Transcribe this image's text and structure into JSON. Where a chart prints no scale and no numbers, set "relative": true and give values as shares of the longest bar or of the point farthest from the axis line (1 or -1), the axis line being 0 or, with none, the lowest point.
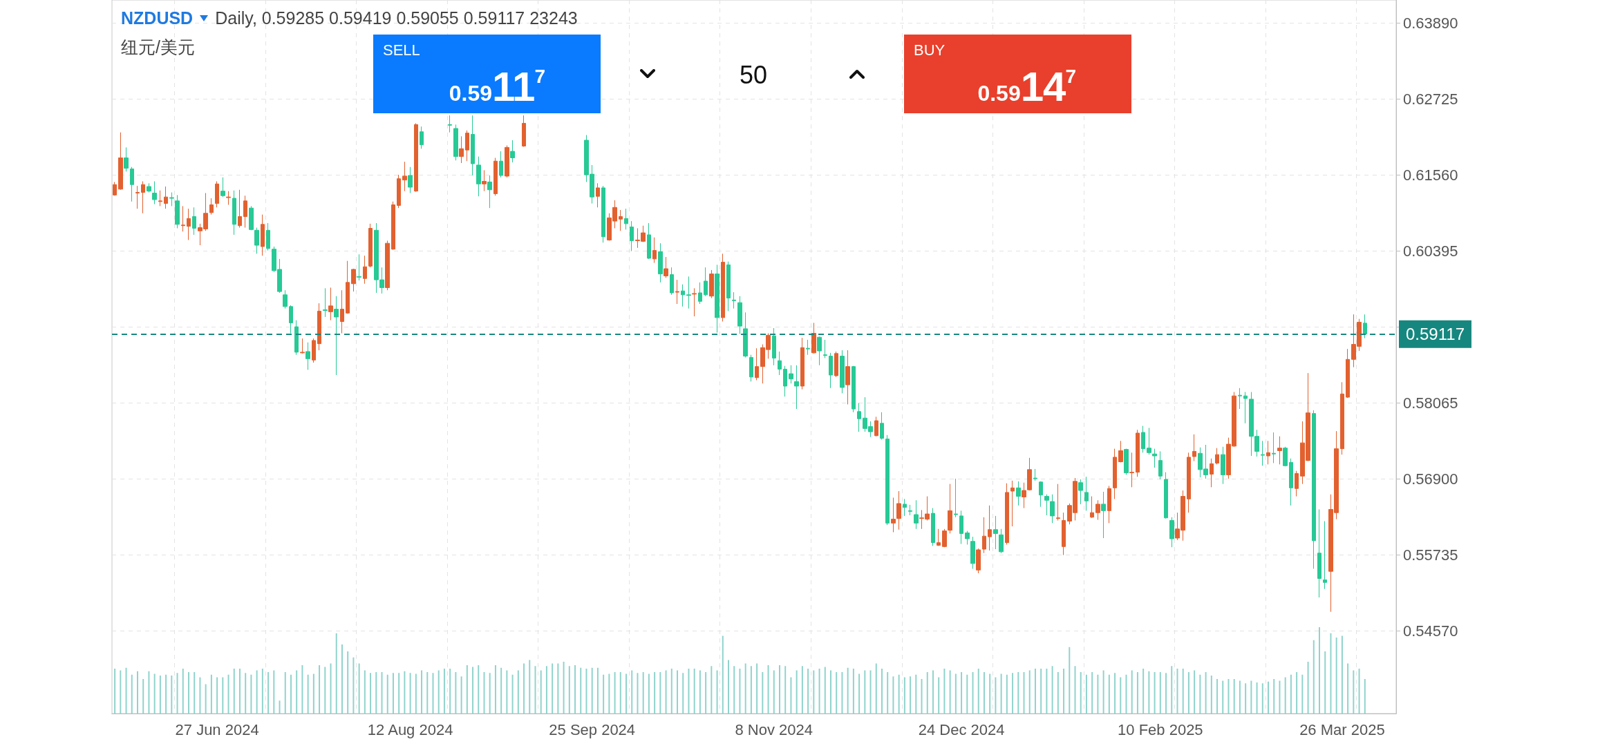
{
  "chart_data": [
    {
      "type": "candlestick",
      "title": "NZDUSD",
      "subtitle": "Daily, 0.59285 0.59419 0.59055 0.59117 23243",
      "annotations": [
        "纽元/美元",
        "SELL",
        "0.5911$^{7}$",
        "50",
        "BUY",
        "0.5914$^{7}$"
      ],
      "colors": [
        "#e2612f",
        "#e2612f",
        "#27c995",
        "#27c995",
        "#e2612f",
        "#e2612f",
        "#27c995",
        "#27c995",
        "#e2612f",
        "#e2612f",
        "#27c995",
        "#27c995",
        "#e2612f",
        "#e2612f",
        "#27c995",
        "#e2612f",
        "#e2612f",
        "#e2612f",
        "#e2612f",
        "#27c995",
        "#e2612f",
        "#27c995",
        "#e2612f",
        "#e2612f",
        "#27c995",
        "#27c995",
        "#e2612f",
        "#27c995",
        "#27c995",
        "#27c995",
        "#27c995",
        "#27c995",
        "#27c995",
        "#e2612f",
        "#27c995",
        "#e2612f",
        "#e2612f",
        "#27c995",
        "#e2612f",
        "#27c995",
        "#e2612f",
        "#e2612f",
        "#e2612f",
        "#27c995",
        "#e2612f",
        "#e2612f",
        "#27c995",
        "#27c995",
        "#e2612f",
        "#e2612f",
        "#e2612f",
        "#e2612f",
        "#27c995",
        "#e2612f",
        "#27c995",
        "#e2612f",
        "#27c995",
        "#e2612f",
        "#27c995",
        "#27c995",
        "#27c995",
        "#e2612f",
        "#e2612f",
        "#27c995",
        "#27c995",
        "#e2612f",
        "#27c995",
        "#e2612f",
        "#27c995",
        "#e2612f",
        "#27c995",
        "#e2612f",
        "#e2612f",
        "#27c995",
        "#e2612f",
        null,
        null,
        null,
        null,
        null,
        null,
        null,
        "#27c995",
        "#27c995",
        "#27c995",
        "#e2612f",
        "#27c995",
        "#e2612f",
        "#e2612f",
        "#e2612f",
        "#27c995",
        "#27c995",
        "#e2612f",
        "#e2612f",
        "#27c995",
        "#e2612f",
        "#27c995",
        "#e2612f",
        "#27c995",
        "#e2612f",
        "#27c995",
        "#27c995",
        "#e2612f",
        "#27c995",
        "#27c995",
        "#e2612f",
        "#27c995",
        "#e2612f",
        "#27c995",
        "#27c995",
        "#27c995",
        "#27c995",
        "#27c995",
        "#e2612f",
        "#e2612f",
        "#e2612f",
        "#27c995",
        "#27c995",
        "#27c995",
        "#27c995",
        "#27c995",
        "#e2612f",
        "#27c995",
        "#e2612f",
        "#27c995",
        "#27c995",
        "#27c995",
        "#e2612f",
        "#27c995",
        "#e2612f",
        "#27c995",
        "#27c995",
        "#27c995",
        "#27c995",
        "#e2612f",
        "#27c995",
        "#27c995",
        "#e2612f",
        "#e2612f",
        "#27c995",
        "#27c995",
        "#27c995",
        "#e2612f",
        "#e2612f",
        "#27c995",
        "#e2612f",
        "#e2612f",
        "#e2612f",
        "#27c995",
        "#27c995",
        "#27c995",
        "#27c995",
        "#e2612f",
        "#e2612f",
        "#e2612f",
        "#27c995",
        "#27c995",
        "#e2612f",
        "#e2612f",
        "#27c995",
        "#e2612f",
        "#e2612f",
        "#27c995",
        "#27c995",
        "#27c995",
        "#27c995",
        "#e2612f",
        "#e2612f",
        "#e2612f",
        "#e2612f",
        "#27c995",
        "#27c995",
        "#e2612f",
        "#e2612f",
        "#27c995",
        "#e2612f",
        "#e2612f",
        "#e2612f",
        "#27c995",
        "#e2612f",
        "#e2612f",
        "#27c995",
        "#27c995",
        "#27c995",
        "#27c995",
        "#27c995",
        "#27c995",
        "#e2612f",
        "#e2612f",
        "#e2612f",
        "#e2612f",
        "#27c995",
        "#27c995",
        "#e2612f",
        "#e2612f",
        "#27c995",
        "#e2612f",
        "#e2612f",
        "#27c995",
        "#27c995",
        "#27c995",
        "#27c995",
        "#27c995",
        "#e2612f",
        "#27c995",
        "#e2612f",
        "#27c995",
        "#27c995",
        "#e2612f",
        "#e2612f",
        "#e2612f",
        "#27c995",
        "#27c995",
        "#27c995",
        "#e2612f",
        "#e2612f",
        "#e2612f",
        "#e2612f",
        "#e2612f",
        "#e2612f",
        "#27c995",
        null,
        null,
        null,
        null,
        null
      ],
      "categories": [
        null,
        null,
        null,
        null,
        null,
        null,
        null,
        null,
        null,
        null,
        null,
        null,
        null,
        null,
        null,
        null,
        null,
        null,
        "27 Jun 2024",
        null,
        null,
        null,
        null,
        null,
        null,
        null,
        null,
        null,
        null,
        null,
        null,
        null,
        null,
        null,
        null,
        null,
        null,
        null,
        null,
        null,
        null,
        null,
        null,
        null,
        null,
        null,
        null,
        null,
        null,
        null,
        null,
        null,
        "12 Aug 2024",
        null,
        null,
        null,
        null,
        null,
        null,
        null,
        null,
        null,
        null,
        null,
        null,
        null,
        null,
        null,
        null,
        null,
        null,
        null,
        null,
        null,
        null,
        null,
        null,
        null,
        null,
        null,
        null,
        null,
        null,
        null,
        "25 Sep 2024",
        null,
        null,
        null,
        null,
        null,
        null,
        null,
        null,
        null,
        null,
        null,
        null,
        null,
        null,
        null,
        null,
        null,
        null,
        null,
        null,
        null,
        null,
        null,
        null,
        null,
        null,
        null,
        null,
        null,
        null,
        null,
        "8 Nov 2024",
        null,
        null,
        null,
        null,
        null,
        null,
        null,
        null,
        null,
        null,
        null,
        null,
        null,
        null,
        null,
        null,
        null,
        null,
        null,
        null,
        null,
        null,
        null,
        null,
        null,
        null,
        null,
        null,
        null,
        null,
        null,
        null,
        "24 Dec 2024",
        null,
        null,
        null,
        null,
        null,
        null,
        null,
        null,
        null,
        null,
        null,
        null,
        null,
        null,
        null,
        null,
        null,
        null,
        null,
        null,
        null,
        null,
        null,
        null,
        null,
        null,
        null,
        null,
        null,
        null,
        null,
        null,
        null,
        null,
        "10 Feb 2025",
        null,
        null,
        null,
        null,
        null,
        null,
        null,
        null,
        null,
        null,
        null,
        null,
        null,
        null,
        null,
        null,
        null,
        null,
        null,
        null,
        null,
        null,
        null,
        null,
        null,
        null,
        null,
        null,
        null,
        null,
        null,
        "26 Mar 2025",
        null,
        null,
        null,
        null,
        null,
        null,
        null,
        null,
        null
      ],
      "ohlc": [
        [
          0.6125,
          0.6145,
          0.6124,
          0.6141
        ],
        [
          0.6134,
          0.6221,
          0.6133,
          0.6182
        ],
        [
          0.6182,
          0.6198,
          0.6161,
          0.6166
        ],
        [
          0.6165,
          0.6168,
          0.6115,
          0.6141
        ],
        [
          0.6128,
          0.6139,
          0.6104,
          0.6129
        ],
        [
          0.6129,
          0.6146,
          0.6097,
          0.6141
        ],
        [
          0.6138,
          0.6143,
          0.6129,
          0.6131
        ],
        [
          0.6128,
          0.6146,
          0.6111,
          0.6118
        ],
        [
          0.6115,
          0.6132,
          0.6108,
          0.6116
        ],
        [
          0.6112,
          0.6138,
          0.6104,
          0.6122
        ],
        [
          0.6121,
          0.6129,
          0.6108,
          0.612
        ],
        [
          0.6116,
          0.6125,
          0.6074,
          0.608
        ],
        [
          0.6078,
          0.6108,
          0.6069,
          0.6079
        ],
        [
          0.6077,
          0.6104,
          0.6056,
          0.6089
        ],
        [
          0.6092,
          0.6106,
          0.6064,
          0.6074
        ],
        [
          0.607,
          0.6081,
          0.6048,
          0.6075
        ],
        [
          0.6073,
          0.6128,
          0.607,
          0.6097
        ],
        [
          0.6098,
          0.612,
          0.6095,
          0.611
        ],
        [
          0.6112,
          0.6146,
          0.6106,
          0.6142
        ],
        [
          0.6131,
          0.6152,
          0.6122,
          0.6124
        ],
        [
          0.6121,
          0.6131,
          0.611,
          0.6122
        ],
        [
          0.612,
          0.6132,
          0.6064,
          0.608
        ],
        [
          0.6078,
          0.6133,
          0.6075,
          0.6092
        ],
        [
          0.6092,
          0.6124,
          0.6075,
          0.6116
        ],
        [
          0.6105,
          0.6108,
          0.6071,
          0.6072
        ],
        [
          0.6071,
          0.6075,
          0.6035,
          0.6048
        ],
        [
          0.6046,
          0.6095,
          0.6032,
          0.608
        ],
        [
          0.6071,
          0.6082,
          0.604,
          0.6043
        ],
        [
          0.6042,
          0.6046,
          0.6007,
          0.6009
        ],
        [
          0.6011,
          0.6027,
          0.5975,
          0.5977
        ],
        [
          0.5972,
          0.5979,
          0.5951,
          0.5954
        ],
        [
          0.5954,
          0.5956,
          0.5913,
          0.5929
        ],
        [
          0.5923,
          0.5933,
          0.588,
          0.5884
        ],
        [
          0.5883,
          0.5905,
          0.5882,
          0.5884
        ],
        [
          0.5885,
          0.5899,
          0.5857,
          0.5874
        ],
        [
          0.5872,
          0.5905,
          0.5868,
          0.5902
        ],
        [
          0.5897,
          0.5959,
          0.5887,
          0.5947
        ],
        [
          0.5949,
          0.5982,
          0.5938,
          0.5948
        ],
        [
          0.5946,
          0.5983,
          0.5933,
          0.5955
        ],
        [
          0.595,
          0.597,
          0.5849,
          0.5938
        ],
        [
          0.5931,
          0.5979,
          0.5913,
          0.595
        ],
        [
          0.5944,
          0.6024,
          0.5943,
          0.5991
        ],
        [
          0.5989,
          0.6012,
          0.5977,
          0.6011
        ],
        [
          0.6,
          0.6034,
          0.5994,
          0.5999
        ],
        [
          0.5997,
          0.6032,
          0.5989,
          0.6015
        ],
        [
          0.6016,
          0.6081,
          0.6014,
          0.6074
        ],
        [
          0.6071,
          0.6082,
          0.5975,
          0.5995
        ],
        [
          0.5995,
          0.6014,
          0.5974,
          0.5983
        ],
        [
          0.5983,
          0.6055,
          0.5979,
          0.6051
        ],
        [
          0.6042,
          0.6115,
          0.6041,
          0.611
        ],
        [
          0.6109,
          0.6156,
          0.6105,
          0.615
        ],
        [
          0.6148,
          0.6176,
          0.6131,
          0.6154
        ],
        [
          0.6155,
          0.6168,
          0.6128,
          0.6137
        ],
        [
          0.6131,
          0.6235,
          0.613,
          0.6233
        ],
        [
          0.6222,
          0.623,
          0.6196,
          0.6202
        ],
        null,
        null,
        null,
        null,
        [
          0.6233,
          0.6247,
          0.6221,
          0.6232
        ],
        [
          0.6227,
          0.6233,
          0.6178,
          0.6184
        ],
        [
          0.6184,
          0.6215,
          0.6174,
          0.6196
        ],
        [
          0.6194,
          0.6224,
          0.6177,
          0.622
        ],
        [
          0.6218,
          0.6247,
          0.6155,
          0.6173
        ],
        [
          0.6171,
          0.6184,
          0.6123,
          0.6142
        ],
        [
          0.6142,
          0.6163,
          0.6131,
          0.6146
        ],
        [
          0.6145,
          0.6155,
          0.6105,
          0.6133
        ],
        [
          0.6127,
          0.6182,
          0.6124,
          0.6177
        ],
        [
          0.6177,
          0.6192,
          0.6152,
          0.6155
        ],
        [
          0.6154,
          0.6201,
          0.6152,
          0.6198
        ],
        [
          0.6192,
          0.6209,
          0.6175,
          0.6182
        ],
        null,
        [
          0.62,
          0.6247,
          0.6199,
          0.6235
        ],
        null,
        null,
        null,
        null,
        null,
        null,
        null,
        null,
        null,
        null,
        [
          0.6209,
          0.6217,
          0.6145,
          0.6156
        ],
        [
          0.6157,
          0.6171,
          0.6112,
          0.6122
        ],
        [
          0.6123,
          0.6143,
          0.6106,
          0.6136
        ],
        [
          0.6136,
          0.6139,
          0.6052,
          0.6061
        ],
        [
          0.6056,
          0.6097,
          0.6055,
          0.609
        ],
        [
          0.6085,
          0.6117,
          0.6074,
          0.6106
        ],
        [
          0.6088,
          0.6102,
          0.607,
          0.6092
        ],
        [
          0.6089,
          0.6104,
          0.6072,
          0.6081
        ],
        [
          0.6076,
          0.6085,
          0.6039,
          0.6055
        ],
        [
          0.6055,
          0.6074,
          0.6044,
          0.6056
        ],
        [
          0.6054,
          0.6078,
          0.6053,
          0.6067
        ],
        [
          0.6064,
          0.6082,
          0.6027,
          0.6028
        ],
        [
          0.6027,
          0.606,
          0.6021,
          0.604
        ],
        [
          0.6038,
          0.6051,
          0.5991,
          0.6004
        ],
        [
          0.6001,
          0.603,
          0.5998,
          0.6012
        ],
        [
          0.6003,
          0.6014,
          0.5972,
          0.5975
        ],
        [
          0.5976,
          0.5995,
          0.5958,
          0.5977
        ],
        [
          0.5978,
          0.5988,
          0.5954,
          0.5972
        ],
        [
          0.5972,
          0.6,
          0.5951,
          0.5971
        ],
        [
          0.5973,
          0.5982,
          0.5939,
          0.5974
        ],
        [
          0.5975,
          0.5991,
          0.5958,
          0.5962
        ],
        [
          0.5993,
          0.6014,
          0.597,
          0.5972
        ],
        [
          0.597,
          0.601,
          0.5967,
          0.6004
        ],
        [
          0.6004,
          0.6018,
          0.5914,
          0.5937
        ],
        [
          0.5937,
          0.6035,
          0.5931,
          0.6022
        ],
        [
          0.6018,
          0.6023,
          0.5947,
          0.5967
        ],
        [
          0.5964,
          0.5976,
          0.5951,
          0.5963
        ],
        [
          0.596,
          0.597,
          0.5912,
          0.5924
        ],
        [
          0.592,
          0.5945,
          0.5876,
          0.5878
        ],
        [
          0.5876,
          0.588,
          0.5839,
          0.5846
        ],
        [
          0.5845,
          0.589,
          0.5841,
          0.5862
        ],
        [
          0.5862,
          0.5896,
          0.5836,
          0.5891
        ],
        [
          0.5888,
          0.5913,
          0.5874,
          0.591
        ],
        [
          0.5909,
          0.5921,
          0.5864,
          0.5875
        ],
        [
          0.5871,
          0.5885,
          0.5849,
          0.5858
        ],
        [
          0.5858,
          0.5863,
          0.5816,
          0.5832
        ],
        [
          0.5851,
          0.5864,
          0.5836,
          0.5843
        ],
        [
          0.5839,
          0.5864,
          0.5797,
          0.5832
        ],
        [
          0.5832,
          0.5906,
          0.5827,
          0.5891
        ],
        [
          0.589,
          0.5903,
          0.588,
          0.5889
        ],
        [
          0.5883,
          0.5929,
          0.5882,
          0.5913
        ],
        [
          0.5907,
          0.5908,
          0.5864,
          0.5886
        ],
        [
          0.588,
          0.5903,
          0.5875,
          0.5879
        ],
        [
          0.5878,
          0.5883,
          0.5829,
          0.5849
        ],
        [
          0.5848,
          0.5885,
          0.5846,
          0.5882
        ],
        [
          0.5878,
          0.5887,
          0.5821,
          0.583
        ],
        [
          0.5834,
          0.5887,
          0.5804,
          0.5862
        ],
        [
          0.5862,
          0.5863,
          0.5792,
          0.5797
        ],
        [
          0.5793,
          0.5806,
          0.5762,
          0.5782
        ],
        [
          0.5783,
          0.5815,
          0.5762,
          0.5767
        ],
        [
          0.577,
          0.5778,
          0.5754,
          0.5762
        ],
        [
          0.5756,
          0.5785,
          0.5755,
          0.5779
        ],
        [
          0.5775,
          0.5792,
          0.575,
          0.5752
        ],
        [
          0.5751,
          0.5757,
          0.5619,
          0.5622
        ],
        [
          0.5622,
          0.5661,
          0.5608,
          0.5628
        ],
        [
          0.5629,
          0.5671,
          0.5612,
          0.5652
        ],
        [
          0.5651,
          0.5659,
          0.5633,
          0.5646
        ],
        [
          0.5641,
          0.565,
          0.5634,
          0.564
        ],
        [
          0.5635,
          0.5657,
          0.5613,
          0.5622
        ],
        [
          0.5629,
          0.5642,
          0.5613,
          0.563
        ],
        [
          0.5628,
          0.5663,
          0.5626,
          0.5636
        ],
        [
          0.5637,
          0.5645,
          0.5587,
          0.5592
        ],
        [
          0.5588,
          0.5613,
          0.5587,
          0.5592
        ],
        [
          0.5586,
          0.5613,
          0.5585,
          0.561
        ],
        [
          0.5611,
          0.5682,
          0.5606,
          0.5641
        ],
        [
          0.5636,
          0.569,
          0.5631,
          0.5635
        ],
        [
          0.5633,
          0.5641,
          0.559,
          0.5606
        ],
        [
          0.5607,
          0.561,
          0.5589,
          0.5598
        ],
        [
          0.5594,
          0.5601,
          0.5552,
          0.556
        ],
        [
          0.555,
          0.5583,
          0.5545,
          0.5581
        ],
        [
          0.5582,
          0.5631,
          0.5576,
          0.5602
        ],
        [
          0.5601,
          0.5649,
          0.558,
          0.5612
        ],
        [
          0.5612,
          0.5633,
          0.5582,
          0.5606
        ],
        [
          0.5604,
          0.5613,
          0.5576,
          0.5578
        ],
        [
          0.5592,
          0.5683,
          0.5589,
          0.5669
        ],
        [
          0.5671,
          0.5687,
          0.5617,
          0.5676
        ],
        [
          0.5676,
          0.5686,
          0.5649,
          0.5663
        ],
        [
          0.5662,
          0.5684,
          0.5645,
          0.5672
        ],
        [
          0.5673,
          0.5722,
          0.5672,
          0.5704
        ],
        [
          0.5691,
          0.5705,
          0.5687,
          0.569
        ],
        [
          0.5685,
          0.5686,
          0.5647,
          0.5665
        ],
        [
          0.5663,
          0.5666,
          0.5634,
          0.5657
        ],
        [
          0.5655,
          0.5666,
          0.5622,
          0.5633
        ],
        [
          0.5629,
          0.5682,
          0.5626,
          0.563
        ],
        [
          0.5586,
          0.5638,
          0.5573,
          0.5626
        ],
        [
          0.5625,
          0.5652,
          0.562,
          0.5649
        ],
        [
          0.5638,
          0.5691,
          0.5626,
          0.5686
        ],
        [
          0.5684,
          0.5689,
          0.5651,
          0.5672
        ],
        [
          0.5669,
          0.5693,
          0.5641,
          0.5656
        ],
        [
          0.5631,
          0.5663,
          0.563,
          0.5638
        ],
        [
          0.5638,
          0.5657,
          0.5627,
          0.5651
        ],
        [
          0.5651,
          0.567,
          0.5599,
          0.5641
        ],
        [
          0.5641,
          0.5679,
          0.5622,
          0.5675
        ],
        [
          0.5676,
          0.5736,
          0.5659,
          0.5723
        ],
        [
          0.5716,
          0.5748,
          0.5715,
          0.5733
        ],
        [
          0.5735,
          0.5736,
          0.5696,
          0.5699
        ],
        [
          0.5699,
          0.573,
          0.5677,
          0.57
        ],
        [
          0.57,
          0.5765,
          0.5693,
          0.576
        ],
        [
          0.5761,
          0.5771,
          0.573,
          0.5736
        ],
        [
          0.5737,
          0.5768,
          0.5727,
          0.573
        ],
        [
          0.5728,
          0.5736,
          0.5707,
          0.5725
        ],
        [
          0.5718,
          0.5732,
          0.5689,
          0.5694
        ],
        [
          0.5689,
          0.57,
          0.5629,
          0.563
        ],
        [
          0.5626,
          0.5631,
          0.5585,
          0.5598
        ],
        [
          0.5599,
          0.5638,
          0.5596,
          0.5613
        ],
        [
          0.5611,
          0.5672,
          0.5595,
          0.5663
        ],
        [
          0.5659,
          0.573,
          0.5638,
          0.5723
        ],
        [
          0.5724,
          0.5758,
          0.5717,
          0.5732
        ],
        [
          0.5729,
          0.5738,
          0.5692,
          0.5704
        ],
        [
          0.5705,
          0.5742,
          0.569,
          0.5696
        ],
        [
          0.5697,
          0.5721,
          0.5677,
          0.5713
        ],
        [
          0.5714,
          0.5737,
          0.5712,
          0.5727
        ],
        [
          0.5727,
          0.5739,
          0.5682,
          0.5696
        ],
        [
          0.5696,
          0.5753,
          0.569,
          0.5743
        ],
        [
          0.574,
          0.5823,
          0.5739,
          0.5817
        ],
        [
          0.5818,
          0.5829,
          0.5797,
          0.5817
        ],
        [
          0.5817,
          0.5823,
          0.5775,
          0.5813
        ],
        [
          0.5812,
          0.5823,
          0.5725,
          0.5755
        ],
        [
          0.5755,
          0.5765,
          0.5724,
          0.5732
        ],
        [
          0.5727,
          0.5748,
          0.571,
          0.5726
        ],
        [
          0.5725,
          0.5748,
          0.5712,
          0.573
        ],
        [
          0.5729,
          0.5761,
          0.5714,
          0.5728
        ],
        [
          0.5733,
          0.5755,
          0.5712,
          0.5737
        ],
        [
          0.5737,
          0.5739,
          0.5709,
          0.571
        ],
        [
          0.5715,
          0.5721,
          0.5649,
          0.5676
        ],
        [
          0.5675,
          0.5702,
          0.5663,
          0.5698
        ],
        [
          0.5694,
          0.5778,
          0.5682,
          0.5745
        ],
        [
          0.5718,
          0.5852,
          0.5717,
          0.5791
        ],
        [
          0.579,
          0.5795,
          0.5552,
          0.5595
        ],
        [
          0.5576,
          0.5643,
          0.5508,
          0.5537
        ],
        [
          0.5535,
          0.5625,
          0.5521,
          0.5531
        ],
        [
          0.5548,
          0.5666,
          0.5486,
          0.5643
        ],
        [
          0.5638,
          0.5763,
          0.5628,
          0.5736
        ],
        [
          0.5736,
          0.5838,
          0.5727,
          0.582
        ],
        [
          0.5815,
          0.5889,
          0.5814,
          0.5873
        ],
        [
          0.5873,
          0.5942,
          0.5861,
          0.5896
        ],
        [
          0.5893,
          0.5935,
          0.5886,
          0.593
        ],
        [
          0.59285,
          0.59419,
          0.59055,
          0.59117
        ],
        null,
        null,
        null,
        null,
        null
      ],
      "ylim": [
        0.533,
        0.6424
      ],
      "yticks": [
        {
          "value": 0.5457,
          "label": "0.54570"
        },
        {
          "value": 0.55735,
          "label": "0.55735"
        },
        {
          "value": 0.569,
          "label": "0.56900"
        },
        {
          "value": 0.58065,
          "label": "0.58065"
        },
        {
          "value": 0.5923,
          "label": null
        },
        {
          "value": 0.60395,
          "label": "0.60395"
        },
        {
          "value": 0.6156,
          "label": "0.61560"
        },
        {
          "value": 0.62725,
          "label": "0.62725"
        },
        {
          "value": 0.6389,
          "label": "0.63890"
        }
      ],
      "ref_lines": [
        {
          "axis": "y",
          "value": 0.59117,
          "label": "0.59117",
          "color": "#16877f",
          "line_style": "dashed"
        }
      ],
      "grid": true
    },
    {
      "type": "bar",
      "relative": true,
      "color": "#8fd3cc",
      "categories": [
        null,
        null,
        null,
        null,
        null,
        null,
        null,
        null,
        null,
        null,
        null,
        null,
        null,
        null,
        null,
        null,
        null,
        null,
        null,
        null,
        null,
        null,
        null,
        null,
        null,
        null,
        null,
        null,
        null,
        null,
        null,
        null,
        null,
        null,
        null,
        null,
        null,
        null,
        null,
        null,
        null,
        null,
        null,
        null,
        null,
        null,
        null,
        null,
        null,
        null,
        null,
        null,
        null,
        null,
        null,
        null,
        null,
        null,
        null,
        null,
        null,
        null,
        null,
        null,
        null,
        null,
        null,
        null,
        null,
        null,
        null,
        null,
        null,
        null,
        null,
        null,
        null,
        null,
        null,
        null,
        null,
        null,
        null,
        null,
        null,
        null,
        null,
        null,
        null,
        null,
        null,
        null,
        null,
        null,
        null,
        null,
        null,
        null,
        null,
        null,
        null,
        null,
        null,
        null,
        null,
        null,
        null,
        null,
        null,
        null,
        null,
        null,
        null,
        null,
        null,
        null,
        null,
        null,
        null,
        null,
        null,
        null,
        null,
        null,
        null,
        null,
        null,
        null,
        null,
        null,
        null,
        null,
        null,
        null,
        null,
        null,
        null,
        null,
        null,
        null,
        null,
        null,
        null,
        null,
        null,
        null,
        null,
        null,
        null,
        null,
        null,
        null,
        null,
        null,
        null,
        null,
        null,
        null,
        null,
        null,
        null,
        null,
        null,
        null,
        null,
        null,
        null,
        null,
        null,
        null,
        null,
        null,
        null,
        null,
        null,
        null,
        null,
        null,
        null,
        null,
        null,
        null,
        null,
        null,
        null,
        null,
        null,
        null,
        null,
        null,
        null,
        null,
        null,
        null,
        null,
        null,
        null,
        null,
        null,
        null,
        null,
        null,
        null,
        null,
        null,
        null,
        null,
        null,
        null,
        null,
        null,
        null,
        null,
        null,
        null,
        null,
        null,
        null,
        null,
        null,
        null,
        null,
        null,
        null,
        null,
        null
      ],
      "values": [
        0.52,
        0.5,
        0.53,
        0.45,
        0.49,
        0.4,
        0.49,
        0.46,
        0.44,
        0.45,
        0.44,
        0.47,
        0.52,
        0.48,
        0.48,
        0.42,
        0.34,
        0.45,
        0.42,
        0.42,
        0.45,
        0.52,
        0.52,
        0.47,
        0.45,
        0.5,
        0.52,
        0.48,
        0.5,
        0.15,
        0.48,
        0.45,
        0.5,
        0.56,
        0.45,
        0.46,
        0.56,
        0.54,
        0.58,
        0.93,
        0.8,
        0.72,
        0.65,
        0.58,
        0.5,
        0.47,
        0.48,
        0.48,
        0.45,
        0.47,
        0.47,
        0.49,
        0.47,
        0.46,
        0.5,
        0.48,
        0.47,
        0.5,
        0.52,
        0.52,
        0.48,
        0.43,
        0.56,
        0.54,
        0.56,
        0.48,
        0.47,
        0.56,
        0.53,
        0.5,
        0.45,
        0.5,
        0.58,
        0.62,
        0.55,
        0.5,
        0.55,
        0.58,
        0.58,
        0.6,
        0.55,
        0.56,
        0.53,
        0.52,
        0.53,
        0.53,
        0.45,
        0.46,
        0.48,
        0.48,
        0.46,
        0.5,
        0.47,
        0.48,
        0.46,
        0.48,
        0.48,
        0.5,
        0.52,
        0.5,
        0.47,
        0.52,
        0.52,
        0.5,
        0.48,
        0.55,
        0.5,
        0.9,
        0.62,
        0.55,
        0.52,
        0.58,
        0.55,
        0.58,
        0.48,
        0.56,
        0.5,
        0.56,
        0.55,
        0.42,
        0.5,
        0.55,
        0.52,
        0.5,
        0.52,
        0.54,
        0.5,
        0.48,
        0.48,
        0.53,
        0.52,
        0.46,
        0.5,
        0.5,
        0.58,
        0.52,
        0.48,
        0.43,
        0.45,
        0.42,
        0.43,
        0.45,
        0.4,
        0.48,
        0.5,
        0.42,
        0.52,
        0.5,
        0.46,
        0.48,
        0.45,
        0.48,
        0.52,
        0.48,
        0.46,
        0.42,
        0.46,
        0.45,
        0.47,
        0.48,
        0.48,
        0.5,
        0.52,
        0.52,
        0.52,
        0.55,
        0.48,
        0.52,
        0.77,
        0.55,
        0.48,
        0.45,
        0.48,
        0.45,
        0.5,
        0.45,
        0.47,
        0.42,
        0.45,
        0.5,
        0.48,
        0.52,
        0.49,
        0.48,
        0.48,
        0.47,
        0.55,
        0.52,
        0.52,
        0.48,
        0.5,
        0.45,
        0.48,
        0.44,
        0.4,
        0.38,
        0.4,
        0.4,
        0.38,
        0.35,
        0.38,
        0.36,
        0.35,
        0.37,
        0.4,
        0.38,
        0.42,
        0.45,
        0.48,
        0.45,
        0.6,
        0.85,
        1,
        0.72,
        0.93,
        0.88,
        0.9,
        0.58,
        0.5,
        0.52,
        0.4,
        null,
        null,
        null,
        null,
        null
      ]
    }
  ]
}
